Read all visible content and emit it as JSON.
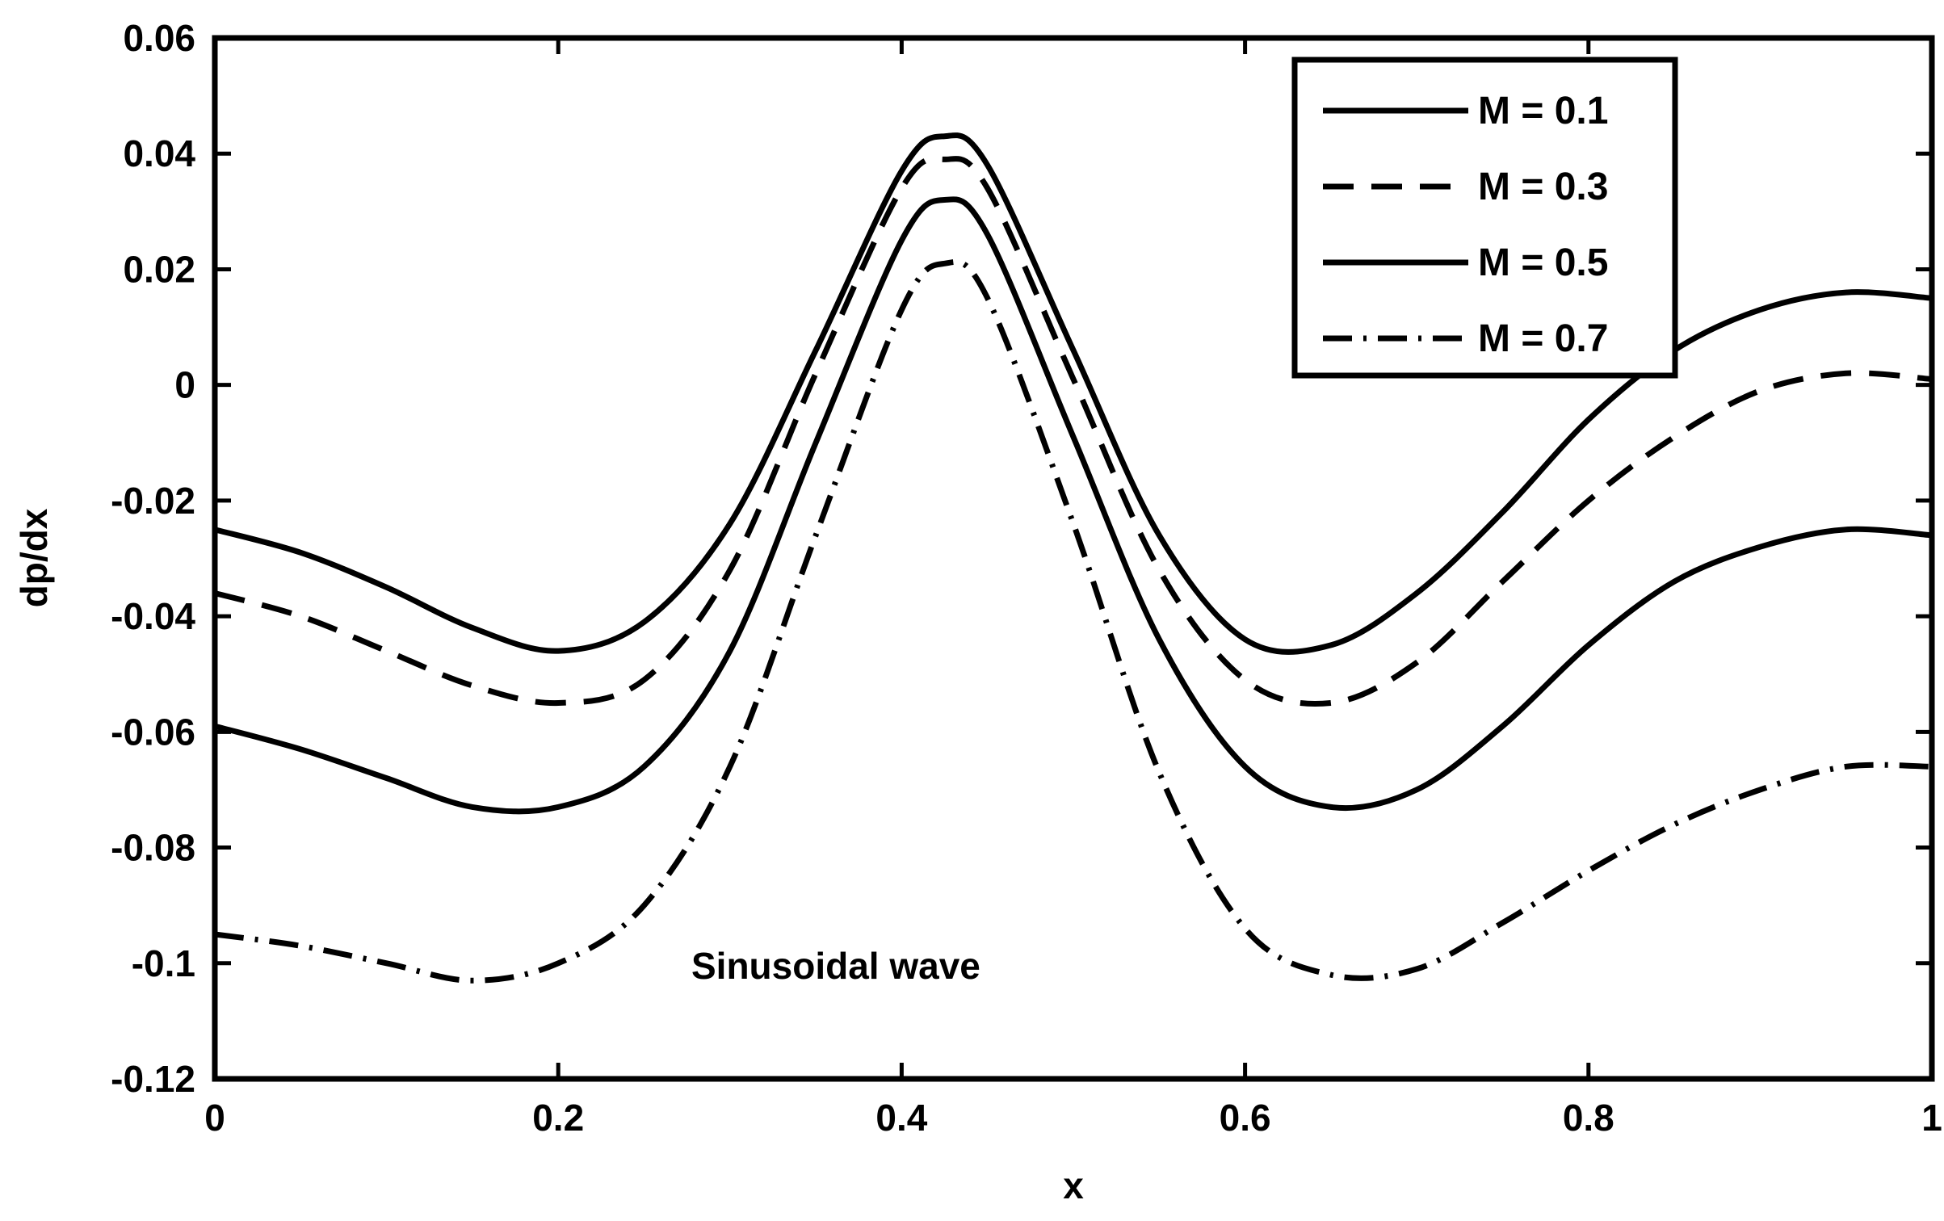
{
  "chart_data": {
    "type": "line",
    "title": "",
    "xlabel": "x",
    "ylabel": "dp/dx",
    "xlim": [
      0,
      1
    ],
    "ylim": [
      -0.12,
      0.06
    ],
    "x_ticks": [
      0,
      0.2,
      0.4,
      0.6,
      0.8,
      1
    ],
    "x_tick_labels": [
      "0",
      "0.2",
      "0.4",
      "0.6",
      "0.8",
      "1"
    ],
    "y_ticks": [
      0.06,
      0.04,
      0.02,
      0,
      -0.02,
      -0.04,
      -0.06,
      -0.08,
      -0.1,
      -0.12
    ],
    "y_tick_labels": [
      "0.06",
      "0.04",
      "0.02",
      "0",
      "-0.02",
      "-0.04",
      "-0.06",
      "-0.08",
      "-0.1",
      "-0.12"
    ],
    "grid": false,
    "legend_position": "top-right",
    "annotation": "Sinusoidal wave",
    "x": [
      0,
      0.05,
      0.1,
      0.15,
      0.2,
      0.25,
      0.3,
      0.35,
      0.4,
      0.425,
      0.45,
      0.5,
      0.55,
      0.6,
      0.65,
      0.7,
      0.75,
      0.8,
      0.85,
      0.9,
      0.95,
      1
    ],
    "series": [
      {
        "name": "M = 0.1",
        "style": "solid",
        "values": [
          -0.025,
          -0.029,
          -0.035,
          -0.042,
          -0.046,
          -0.041,
          -0.024,
          0.006,
          0.037,
          0.043,
          0.038,
          0.006,
          -0.026,
          -0.044,
          -0.045,
          -0.036,
          -0.022,
          -0.006,
          0.006,
          0.013,
          0.016,
          0.015
        ]
      },
      {
        "name": "M = 0.3",
        "style": "dashed",
        "values": [
          -0.036,
          -0.04,
          -0.046,
          -0.052,
          -0.055,
          -0.051,
          -0.032,
          0.002,
          0.034,
          0.039,
          0.034,
          0.001,
          -0.032,
          -0.051,
          -0.055,
          -0.048,
          -0.034,
          -0.02,
          -0.009,
          -0.001,
          0.002,
          0.001
        ]
      },
      {
        "name": "M = 0.5",
        "style": "solid",
        "values": [
          -0.059,
          -0.063,
          -0.068,
          -0.073,
          -0.073,
          -0.066,
          -0.046,
          -0.01,
          0.025,
          0.032,
          0.026,
          -0.009,
          -0.044,
          -0.066,
          -0.073,
          -0.07,
          -0.059,
          -0.045,
          -0.034,
          -0.028,
          -0.025,
          -0.026
        ]
      },
      {
        "name": "M = 0.7",
        "style": "dashdot",
        "values": [
          -0.095,
          -0.097,
          -0.1,
          -0.103,
          -0.1,
          -0.09,
          -0.066,
          -0.026,
          0.013,
          0.021,
          0.015,
          -0.024,
          -0.067,
          -0.094,
          -0.102,
          -0.101,
          -0.093,
          -0.084,
          -0.076,
          -0.07,
          -0.066,
          -0.066
        ]
      }
    ]
  }
}
